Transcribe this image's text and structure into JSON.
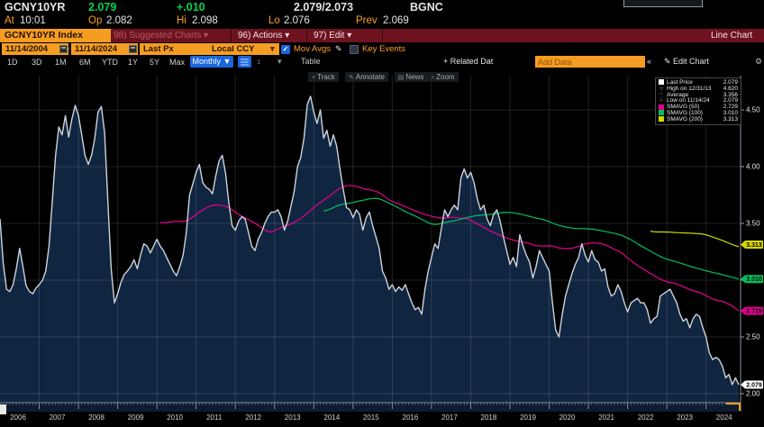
{
  "header": {
    "ticker": "GCNY10YR",
    "last_price": "2.079",
    "change": "+.010",
    "bid_ask": "2.079/2.073",
    "source": "BGNC",
    "at_label": "At",
    "time": "10:01",
    "open_label": "Op",
    "open": "2.082",
    "high_label": "Hi",
    "high": "2.098",
    "low_label": "Lo",
    "low": "2.076",
    "prev_label": "Prev",
    "prev": "2.069"
  },
  "command_bar": {
    "security_field": "GCNY10YR Index",
    "suggested_charts": "98) Suggested Charts ▾",
    "actions": "96) Actions ▾",
    "edit": "97) Edit ▾",
    "view_label": "Line Chart"
  },
  "settings": {
    "date_from": "11/14/2004",
    "date_range_sep": "-",
    "date_to": "11/14/2024",
    "price_field": "Last Px",
    "currency_field": "Local CCY",
    "mov_avgs_label": "Mov Avgs",
    "mov_avgs_checked": "✓",
    "key_events_label": "Key Events"
  },
  "controls": {
    "range_tabs": [
      "1D",
      "3D",
      "1M",
      "6M",
      "YTD",
      "1Y",
      "5Y",
      "Max"
    ],
    "periodicity": "Monthly ▼",
    "updown_glyph": "↕",
    "caret_glyph": "▾",
    "table_label": "Table",
    "related_data_label": "+ Related Dat",
    "add_data_placeholder": "Add Data",
    "collapse_glyph": "«",
    "edit_chart_label": "✎ Edit Chart",
    "gear_glyph": "⚙",
    "chart_tools": [
      {
        "icon": "+",
        "label": "Track"
      },
      {
        "icon": "✎",
        "label": "Annotate"
      },
      {
        "icon": "▤",
        "label": "News"
      },
      {
        "icon": "⌕",
        "label": "Zoom"
      }
    ]
  },
  "legend": {
    "rows": [
      {
        "marker": "swatch",
        "color": "#ffffff",
        "label": "Last Price",
        "value": "2.079"
      },
      {
        "marker": "high",
        "color": "",
        "label": "High on 12/31/13",
        "value": "4.620"
      },
      {
        "marker": "avg",
        "color": "",
        "label": "Average",
        "value": "3.356"
      },
      {
        "marker": "low",
        "color": "",
        "label": "Low on 11/14/24",
        "value": "2.079"
      },
      {
        "marker": "swatch",
        "color": "#e60090",
        "label": "SMAVG (50)",
        "value": "2.729"
      },
      {
        "marker": "swatch",
        "color": "#00c060",
        "label": "SMAVG (100)",
        "value": "3.010"
      },
      {
        "marker": "swatch",
        "color": "#d8d800",
        "label": "SMAVG (200)",
        "value": "3.313"
      }
    ]
  },
  "chart_data": {
    "type": "line",
    "title": "GCNY10YR Index - Line Chart",
    "periodicity": "Monthly",
    "grid": "on",
    "area_fill": true,
    "colors": {
      "line": "#ccd4dc",
      "area": "#102540",
      "sma50": "#e60090",
      "sma100": "#00c060",
      "sma200": "#d8d800"
    },
    "y_axis": {
      "side": "right",
      "ylim": [
        1.92,
        4.8
      ],
      "ticks": [
        4.5,
        4.0,
        3.5,
        3.0,
        2.5,
        2.0
      ],
      "tick_labels": [
        "4.50",
        "4.00",
        "3.50",
        "3.00",
        "2.50",
        "2.00"
      ]
    },
    "x_axis": {
      "year_labels": [
        "2006",
        "2007",
        "2008",
        "2009",
        "2010",
        "2011",
        "2012",
        "2013",
        "2014",
        "2015",
        "2016",
        "2017",
        "2018",
        "2019",
        "2020",
        "2021",
        "2022",
        "2023",
        "2024"
      ]
    },
    "price_badges": [
      {
        "value": 3.313,
        "label": "3.313",
        "color": "#d8d800"
      },
      {
        "value": 3.01,
        "label": "3.010",
        "color": "#00c060"
      },
      {
        "value": 2.729,
        "label": "2.729",
        "color": "#e60090"
      },
      {
        "value": 2.079,
        "label": "2.079",
        "color": "#ffffff"
      }
    ],
    "annotations": {
      "high": {
        "date": "12/31/13",
        "value": 4.62
      },
      "low": {
        "date": "11/14/24",
        "value": 2.079
      },
      "average": 3.356
    },
    "moving_averages": [
      {
        "name": "SMAVG (50)",
        "window": 50,
        "color": "#e60090",
        "current": 2.729
      },
      {
        "name": "SMAVG (100)",
        "window": 100,
        "color": "#00c060",
        "current": 3.01
      },
      {
        "name": "SMAVG (200)",
        "window": 200,
        "color": "#d8d800",
        "current": 3.313
      }
    ],
    "series": {
      "name": "Last Price",
      "start": "2006-01",
      "end": "2024-11",
      "step": "month",
      "points": [
        3.54,
        3.15,
        2.92,
        2.9,
        2.96,
        3.1,
        3.28,
        3.12,
        2.95,
        2.9,
        2.88,
        2.93,
        2.96,
        3.0,
        3.08,
        3.3,
        3.7,
        4.1,
        4.35,
        4.28,
        4.45,
        4.26,
        4.42,
        4.54,
        4.45,
        4.28,
        4.1,
        4.02,
        4.1,
        4.25,
        4.48,
        4.53,
        4.3,
        3.7,
        3.1,
        2.8,
        2.88,
        2.98,
        3.05,
        3.08,
        3.12,
        3.18,
        3.1,
        3.22,
        3.32,
        3.3,
        3.24,
        3.3,
        3.36,
        3.3,
        3.26,
        3.2,
        3.14,
        3.08,
        3.04,
        3.12,
        3.22,
        3.42,
        3.75,
        3.85,
        3.95,
        4.02,
        3.86,
        3.82,
        3.8,
        3.76,
        3.92,
        4.05,
        4.1,
        3.94,
        3.68,
        3.48,
        3.44,
        3.52,
        3.56,
        3.54,
        3.42,
        3.3,
        3.26,
        3.36,
        3.42,
        3.5,
        3.56,
        3.6,
        3.6,
        3.62,
        3.56,
        3.44,
        3.52,
        3.65,
        3.78,
        4.0,
        4.08,
        4.25,
        4.55,
        4.62,
        4.48,
        4.38,
        4.5,
        4.25,
        4.32,
        4.18,
        4.28,
        4.18,
        3.98,
        3.8,
        3.64,
        3.62,
        3.55,
        3.62,
        3.58,
        3.44,
        3.55,
        3.6,
        3.48,
        3.38,
        3.28,
        3.08,
        3.02,
        2.92,
        2.96,
        2.9,
        2.94,
        2.91,
        2.96,
        2.88,
        2.8,
        2.74,
        2.76,
        2.7,
        2.92,
        3.08,
        3.2,
        3.32,
        3.28,
        3.45,
        3.62,
        3.56,
        3.62,
        3.66,
        3.62,
        3.9,
        3.98,
        3.9,
        3.95,
        3.86,
        3.72,
        3.62,
        3.66,
        3.54,
        3.48,
        3.58,
        3.62,
        3.52,
        3.38,
        3.26,
        3.14,
        3.2,
        3.12,
        3.4,
        3.3,
        3.22,
        3.16,
        3.02,
        3.12,
        3.26,
        3.2,
        3.14,
        3.08,
        2.8,
        2.56,
        2.5,
        2.7,
        2.86,
        2.96,
        3.06,
        3.14,
        3.2,
        3.32,
        3.22,
        3.16,
        3.26,
        3.18,
        3.16,
        3.08,
        3.1,
        2.94,
        2.86,
        2.88,
        2.96,
        2.9,
        2.8,
        2.72,
        2.8,
        2.82,
        2.84,
        2.8,
        2.8,
        2.74,
        2.62,
        2.66,
        2.68,
        2.86,
        2.88,
        2.9,
        2.92,
        2.86,
        2.8,
        2.7,
        2.64,
        2.66,
        2.58,
        2.66,
        2.7,
        2.68,
        2.58,
        2.5,
        2.36,
        2.3,
        2.32,
        2.3,
        2.24,
        2.14,
        2.17,
        2.08,
        2.14,
        2.079
      ]
    }
  }
}
